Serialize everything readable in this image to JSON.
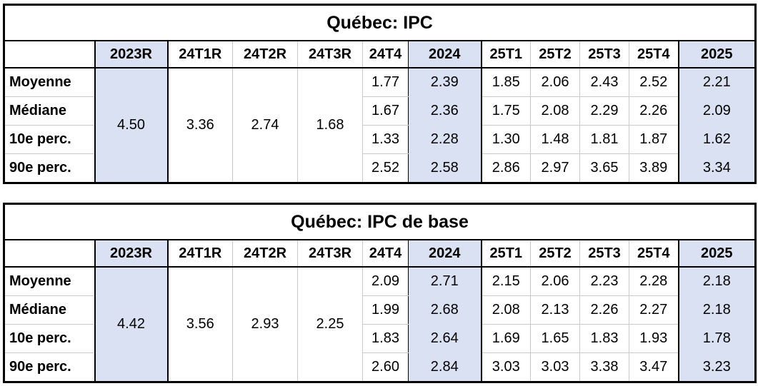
{
  "colors": {
    "shaded_fill": "#D9E1F2",
    "border_black": "#000000",
    "gridline_gray": "#C9C9C9",
    "background": "#FFFFFF"
  },
  "tables": [
    {
      "title": "Québec: IPC",
      "columns": [
        "",
        "2023R",
        "24T1R",
        "24T2R",
        "24T3R",
        "24T4",
        "2024",
        "25T1",
        "25T2",
        "25T3",
        "25T4",
        "2025"
      ],
      "merged_values": {
        "c2023R": "4.50",
        "c24T1R": "3.36",
        "c24T2R": "2.74",
        "c24T3R": "1.68"
      },
      "rows": [
        {
          "label": "Moyenne",
          "values": [
            "1.77",
            "2.39",
            "1.85",
            "2.06",
            "2.43",
            "2.52",
            "2.21"
          ]
        },
        {
          "label": "Médiane",
          "values": [
            "1.67",
            "2.36",
            "1.75",
            "2.08",
            "2.29",
            "2.26",
            "2.09"
          ]
        },
        {
          "label": "10e perc.",
          "values": [
            "1.33",
            "2.28",
            "1.30",
            "1.48",
            "1.81",
            "1.87",
            "1.62"
          ]
        },
        {
          "label": "90e perc.",
          "values": [
            "2.52",
            "2.58",
            "2.86",
            "2.97",
            "3.65",
            "3.89",
            "3.34"
          ]
        }
      ]
    },
    {
      "title": "Québec: IPC de base",
      "columns": [
        "",
        "2023R",
        "24T1R",
        "24T2R",
        "24T3R",
        "24T4",
        "2024",
        "25T1",
        "25T2",
        "25T3",
        "25T4",
        "2025"
      ],
      "merged_values": {
        "c2023R": "4.42",
        "c24T1R": "3.56",
        "c24T2R": "2.93",
        "c24T3R": "2.25"
      },
      "rows": [
        {
          "label": "Moyenne",
          "values": [
            "2.09",
            "2.71",
            "2.15",
            "2.06",
            "2.23",
            "2.28",
            "2.18"
          ]
        },
        {
          "label": "Médiane",
          "values": [
            "1.99",
            "2.68",
            "2.08",
            "2.13",
            "2.26",
            "2.27",
            "2.18"
          ]
        },
        {
          "label": "10e perc.",
          "values": [
            "1.83",
            "2.64",
            "1.69",
            "1.65",
            "1.83",
            "1.93",
            "1.78"
          ]
        },
        {
          "label": "90e perc.",
          "values": [
            "2.60",
            "2.84",
            "3.03",
            "3.03",
            "3.38",
            "3.47",
            "3.23"
          ]
        }
      ]
    }
  ]
}
